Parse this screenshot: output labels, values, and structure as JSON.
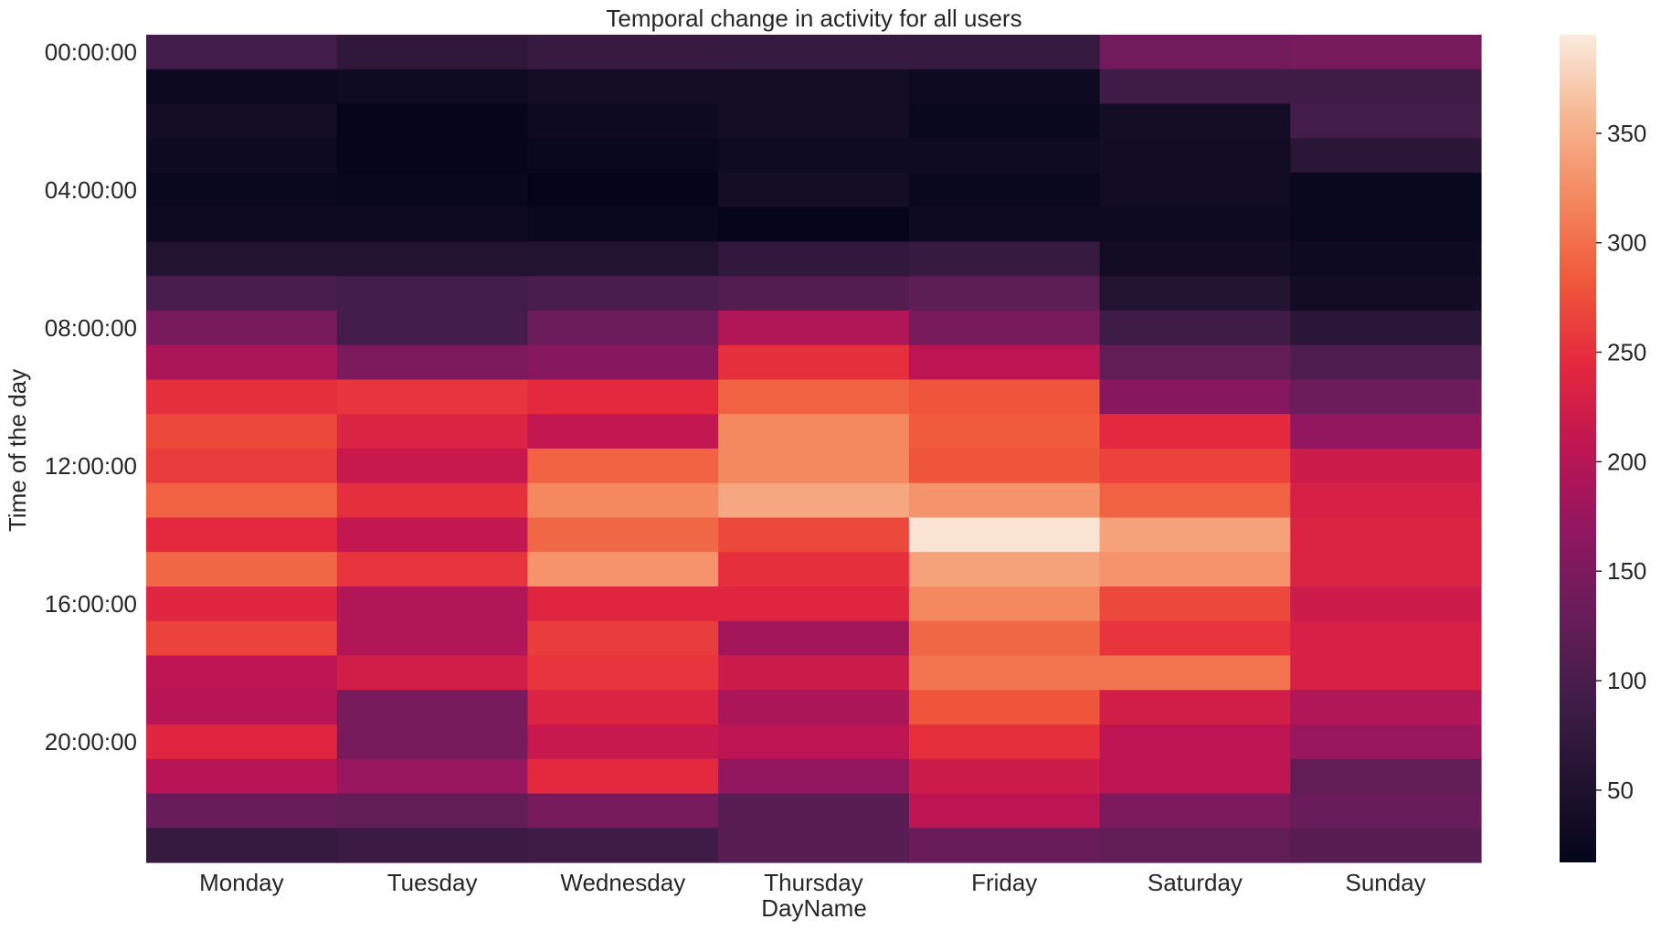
{
  "chart_data": {
    "type": "heatmap",
    "title": "Temporal change in activity for all users",
    "xlabel": "DayName",
    "ylabel": "Time of the day",
    "columns": [
      "Monday",
      "Tuesday",
      "Wednesday",
      "Thursday",
      "Friday",
      "Saturday",
      "Sunday"
    ],
    "rows": [
      "00:00:00",
      "01:00:00",
      "02:00:00",
      "03:00:00",
      "04:00:00",
      "05:00:00",
      "06:00:00",
      "07:00:00",
      "08:00:00",
      "09:00:00",
      "10:00:00",
      "11:00:00",
      "12:00:00",
      "13:00:00",
      "14:00:00",
      "15:00:00",
      "16:00:00",
      "17:00:00",
      "18:00:00",
      "19:00:00",
      "20:00:00",
      "21:00:00",
      "22:00:00",
      "23:00:00"
    ],
    "ytick_labels": [
      "00:00:00",
      "04:00:00",
      "08:00:00",
      "12:00:00",
      "16:00:00",
      "20:00:00"
    ],
    "values": [
      [
        95,
        72,
        82,
        80,
        78,
        140,
        145
      ],
      [
        28,
        32,
        38,
        38,
        30,
        90,
        90
      ],
      [
        38,
        20,
        30,
        38,
        25,
        38,
        95
      ],
      [
        30,
        20,
        25,
        32,
        32,
        35,
        65
      ],
      [
        25,
        22,
        18,
        38,
        25,
        35,
        25
      ],
      [
        30,
        30,
        25,
        20,
        30,
        30,
        25
      ],
      [
        55,
        55,
        55,
        75,
        80,
        35,
        30
      ],
      [
        100,
        95,
        100,
        110,
        120,
        55,
        35
      ],
      [
        145,
        95,
        135,
        195,
        145,
        90,
        65
      ],
      [
        190,
        150,
        160,
        250,
        205,
        125,
        105
      ],
      [
        250,
        255,
        245,
        290,
        280,
        160,
        135
      ],
      [
        270,
        235,
        210,
        320,
        285,
        245,
        170
      ],
      [
        260,
        215,
        290,
        320,
        280,
        265,
        220
      ],
      [
        290,
        250,
        320,
        345,
        330,
        290,
        230
      ],
      [
        245,
        210,
        295,
        270,
        390,
        340,
        235
      ],
      [
        295,
        255,
        330,
        250,
        340,
        330,
        235
      ],
      [
        240,
        195,
        240,
        240,
        320,
        270,
        220
      ],
      [
        265,
        195,
        260,
        185,
        295,
        255,
        230
      ],
      [
        205,
        225,
        255,
        220,
        305,
        305,
        230
      ],
      [
        200,
        145,
        235,
        190,
        280,
        225,
        195
      ],
      [
        240,
        145,
        215,
        205,
        250,
        205,
        175
      ],
      [
        200,
        175,
        245,
        170,
        220,
        205,
        125
      ],
      [
        130,
        125,
        145,
        115,
        205,
        150,
        130
      ],
      [
        80,
        85,
        90,
        115,
        130,
        125,
        115
      ]
    ],
    "colorbar": {
      "min": 17,
      "max": 395,
      "ticks": [
        50,
        100,
        150,
        200,
        250,
        300,
        350
      ],
      "colormap": "rocket"
    },
    "grid": false
  }
}
